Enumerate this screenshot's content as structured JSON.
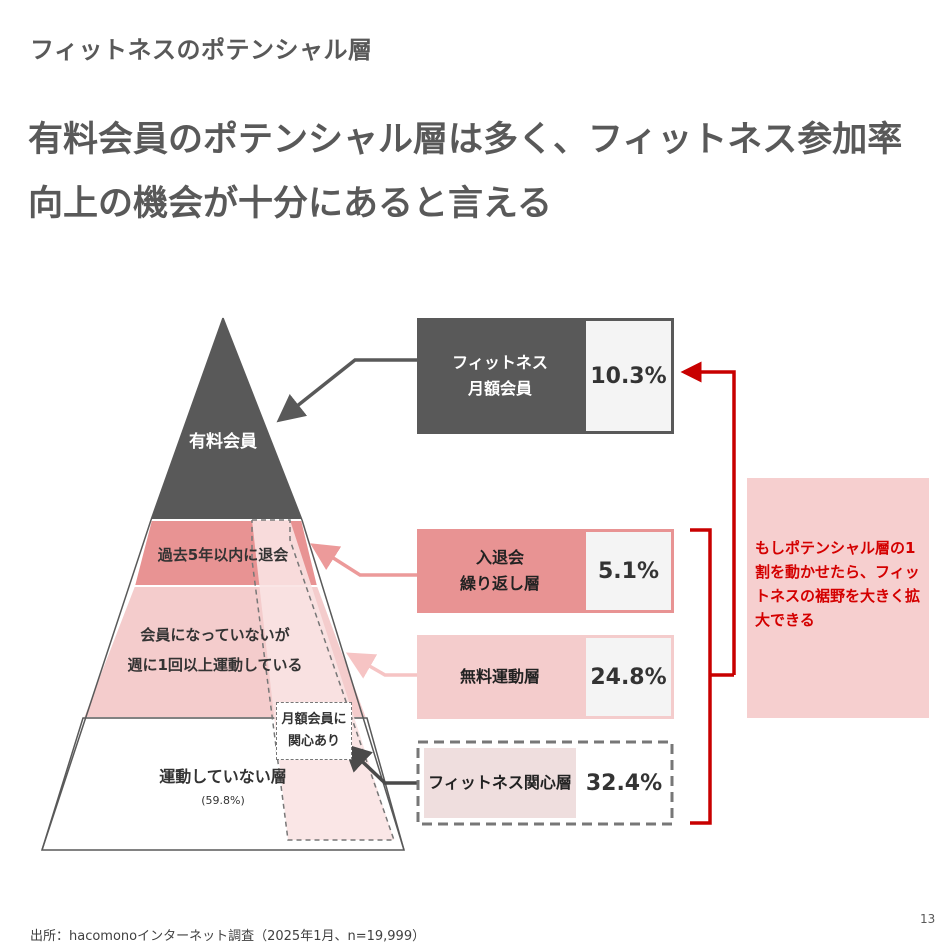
{
  "header": {
    "section_title": "フィットネスのポテンシャル層",
    "headline": "有料会員のポテンシャル層は多く、フィットネス参加率向上の機会が十分にあると言える"
  },
  "pyramid": {
    "paid_members": "有料会員",
    "past_quit": "過去5年以内に退会",
    "active_line1": "会員になっていないが",
    "active_line2": "週に1回以上運動している",
    "inactive": "運動していない層",
    "inactive_pct": "(59.8%)",
    "interest_line1": "月額会員に",
    "interest_line2": "関心あり"
  },
  "segments": [
    {
      "label_line1": "フィットネス",
      "label_line2": "月額会員",
      "value": "10.3%",
      "color": "#595959"
    },
    {
      "label_line1": "入退会",
      "label_line2": "繰り返し層",
      "value": "5.1%",
      "color": "#e89393"
    },
    {
      "label_line1": "無料運動層",
      "label_line2": "",
      "value": "24.8%",
      "color": "#f4cccc"
    },
    {
      "label_line1": "フィットネス関心層",
      "label_line2": "",
      "value": "32.4%",
      "color": "#efdede"
    }
  ],
  "callout": {
    "text": "もしポテンシャル層の1割を動かせたら、フィットネスの裾野を大きく拡大できる",
    "color": "#d40000"
  },
  "footer": {
    "source": "出所：hacomonoインターネット調査（2025年1月、n=19,999）",
    "page_number": "13"
  }
}
